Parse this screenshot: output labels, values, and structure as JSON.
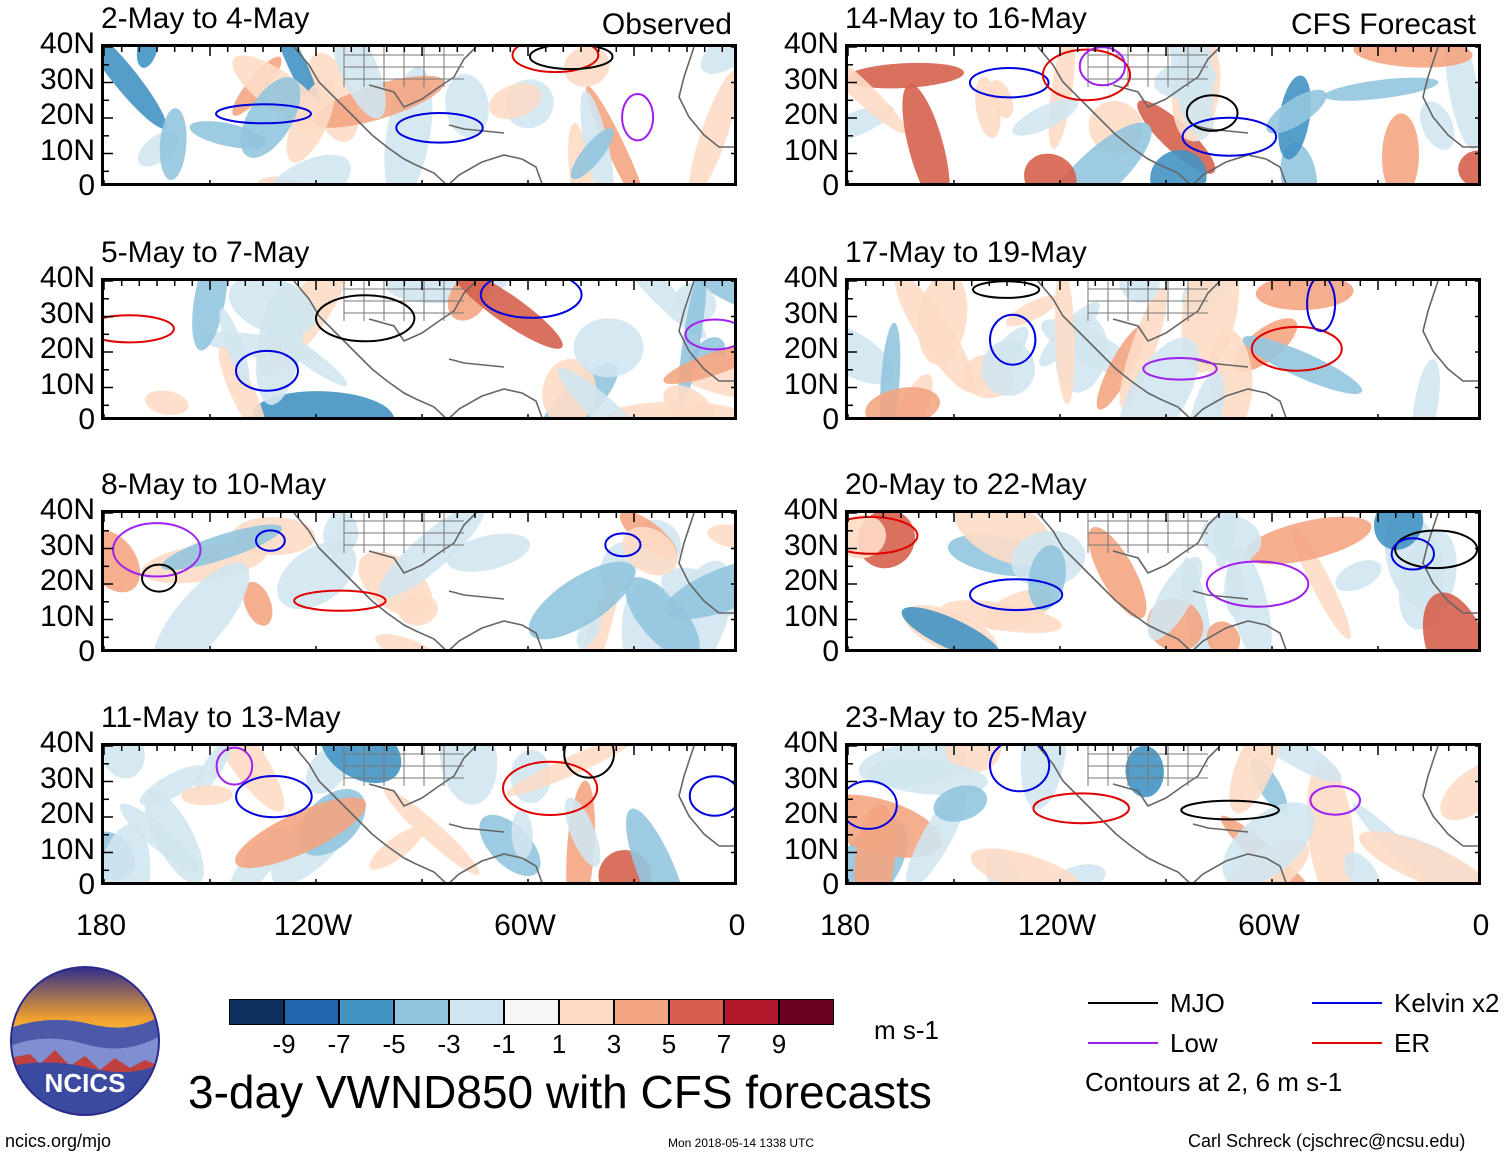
{
  "panels": [
    {
      "title": "2-May to 4-May",
      "tag": "Observed"
    },
    {
      "title": "14-May to 16-May",
      "tag": "CFS Forecast"
    },
    {
      "title": "5-May to 7-May",
      "tag": ""
    },
    {
      "title": "17-May to 19-May",
      "tag": ""
    },
    {
      "title": "8-May to 10-May",
      "tag": ""
    },
    {
      "title": "20-May to 22-May",
      "tag": ""
    },
    {
      "title": "11-May to 13-May",
      "tag": ""
    },
    {
      "title": "23-May to 25-May",
      "tag": ""
    }
  ],
  "lat_labels": [
    "40N",
    "30N",
    "20N",
    "10N",
    "0"
  ],
  "lon_labels": [
    "180",
    "120W",
    "60W",
    "0"
  ],
  "colorbar": {
    "colors": [
      "#0c2f5e",
      "#2166ac",
      "#4393c3",
      "#92c5de",
      "#d1e5f0",
      "#f7f7f7",
      "#fddbc7",
      "#f4a582",
      "#d6604d",
      "#b2182b",
      "#67001f"
    ],
    "ticks": [
      "-9",
      "-7",
      "-5",
      "-3",
      "-1",
      "1",
      "3",
      "5",
      "7",
      "9"
    ],
    "units": "m s-1"
  },
  "title": "3-day VWND850 with CFS forecasts",
  "legend": {
    "items": [
      {
        "label": "MJO",
        "color": "#000000"
      },
      {
        "label": "Kelvin x2",
        "color": "#0000e0"
      },
      {
        "label": "Low",
        "color": "#a020f0"
      },
      {
        "label": "ER",
        "color": "#e00000"
      }
    ],
    "note": "Contours at 2, 6 m s-1"
  },
  "logo": {
    "text": "NCICS"
  },
  "footer": {
    "url": "ncics.org/mjo",
    "timestamp": "Mon 2018-05-14 1338 UTC",
    "author": "Carl Schreck (cjschrec@ncsu.edu)"
  }
}
